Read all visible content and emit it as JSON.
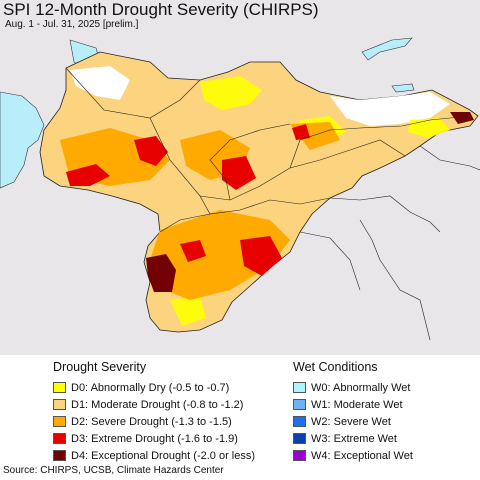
{
  "header": {
    "title": "SPI 12-Month Drought Severity (CHIRPS)",
    "subtitle": "Aug. 1 - Jul. 31, 2025 [prelim.]"
  },
  "legend": {
    "drought": {
      "title": "Drought Severity",
      "items": [
        {
          "label": "D0: Abnormally Dry (-0.5 to -0.7)",
          "color": "#ffff00"
        },
        {
          "label": "D1: Moderate Drought (-0.8 to -1.2)",
          "color": "#fcd37f"
        },
        {
          "label": "D2: Severe Drought (-1.3 to -1.5)",
          "color": "#ffaa00"
        },
        {
          "label": "D3: Extreme Drought (-1.6 to -1.9)",
          "color": "#e60000"
        },
        {
          "label": "D4: Exceptional Drought (-2.0 or less)",
          "color": "#730000"
        }
      ]
    },
    "wet": {
      "title": "Wet Conditions",
      "items": [
        {
          "label": "W0: Abnormally Wet",
          "color": "#aaf5ff"
        },
        {
          "label": "W1: Moderate Wet",
          "color": "#6bb3f5"
        },
        {
          "label": "W2: Severe Wet",
          "color": "#1e6ef5"
        },
        {
          "label": "W3: Extreme Wet",
          "color": "#0b3fb0"
        },
        {
          "label": "W4: Exceptional Wet",
          "color": "#a000d8"
        }
      ]
    }
  },
  "colors": {
    "background": "#e9e6ea",
    "water": "#b7eefa",
    "outside": "#f2f0f2",
    "border": "#222222"
  },
  "footer": {
    "source": "Source: CHIRPS, UCSB, Climate Hazards Center"
  }
}
